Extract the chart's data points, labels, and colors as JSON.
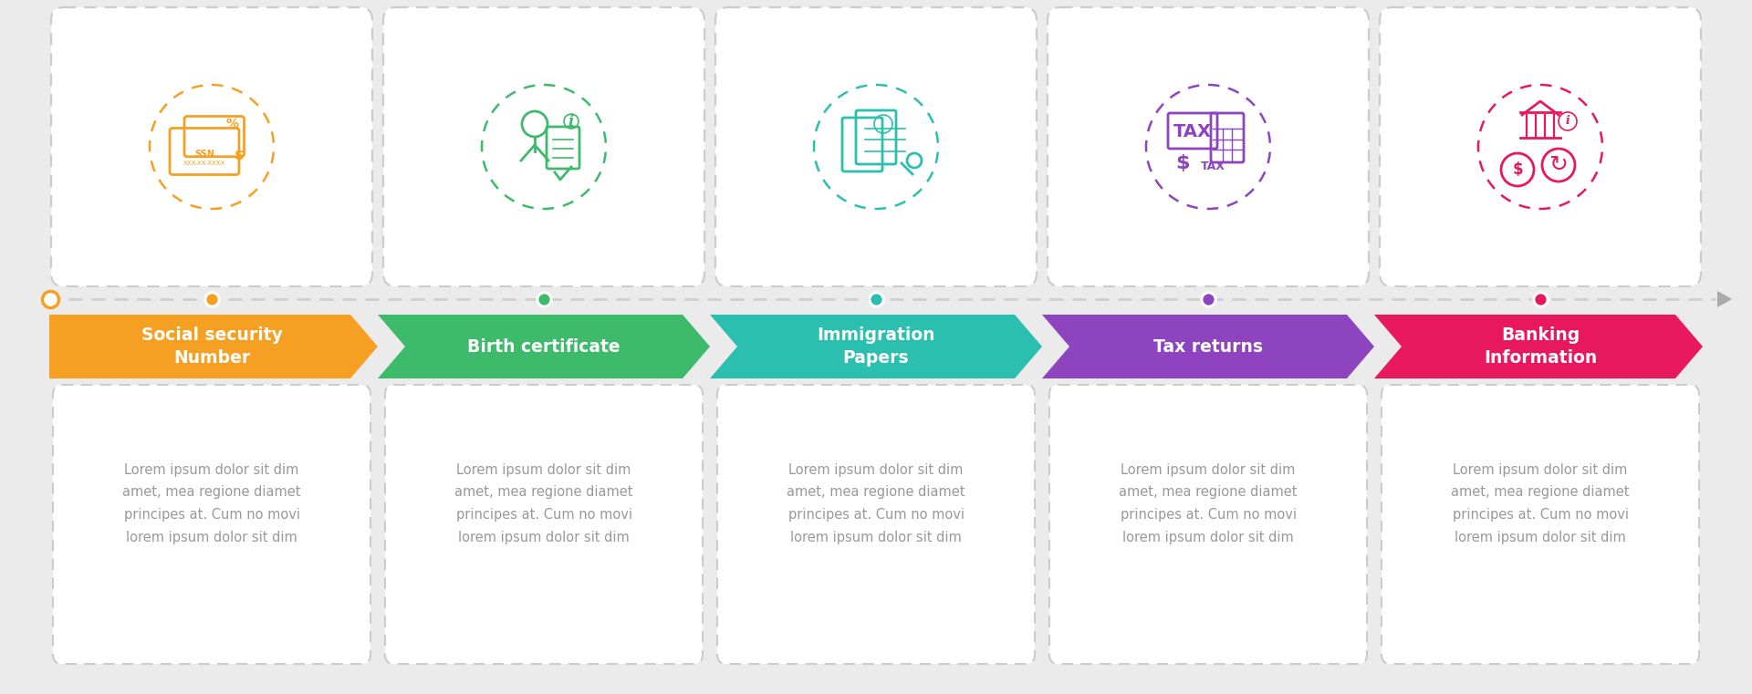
{
  "bg_color": "#ebebeb",
  "steps": [
    {
      "title": "Social security\nNumber",
      "arrow_color": "#f5a023",
      "dot_color": "#f5a023",
      "icon_color": "#f5a023",
      "text": "Lorem ipsum dolor sit dim\namet, mea regione diamet\nprincipes at. Cum no movi\nlorem ipsum dolor sit dim"
    },
    {
      "title": "Birth certificate",
      "arrow_color": "#3dba6a",
      "dot_color": "#3dba6a",
      "icon_color": "#3dba6a",
      "text": "Lorem ipsum dolor sit dim\namet, mea regione diamet\nprincipes at. Cum no movi\nlorem ipsum dolor sit dim"
    },
    {
      "title": "Immigration\nPapers",
      "arrow_color": "#2bbfb0",
      "dot_color": "#2bbfb0",
      "icon_color": "#2bbfb0",
      "text": "Lorem ipsum dolor sit dim\namet, mea regione diamet\nprincipes at. Cum no movi\nlorem ipsum dolor sit dim"
    },
    {
      "title": "Tax returns",
      "arrow_color": "#8e44be",
      "dot_color": "#8e44be",
      "icon_color": "#8e44be",
      "text": "Lorem ipsum dolor sit dim\namet, mea regione diamet\nprincipes at. Cum no movi\nlorem ipsum dolor sit dim"
    },
    {
      "title": "Banking\nInformation",
      "arrow_color": "#e8185e",
      "dot_color": "#e8185e",
      "icon_color": "#e8185e",
      "text": "Lorem ipsum dolor sit dim\namet, mea regione diamet\nprincipes at. Cum no movi\nlorem ipsum dolor sit dim"
    }
  ],
  "text_color": "#999999",
  "line_color": "#cccccc",
  "card_bg": "#ffffff",
  "dashed_border": "#cccccc"
}
